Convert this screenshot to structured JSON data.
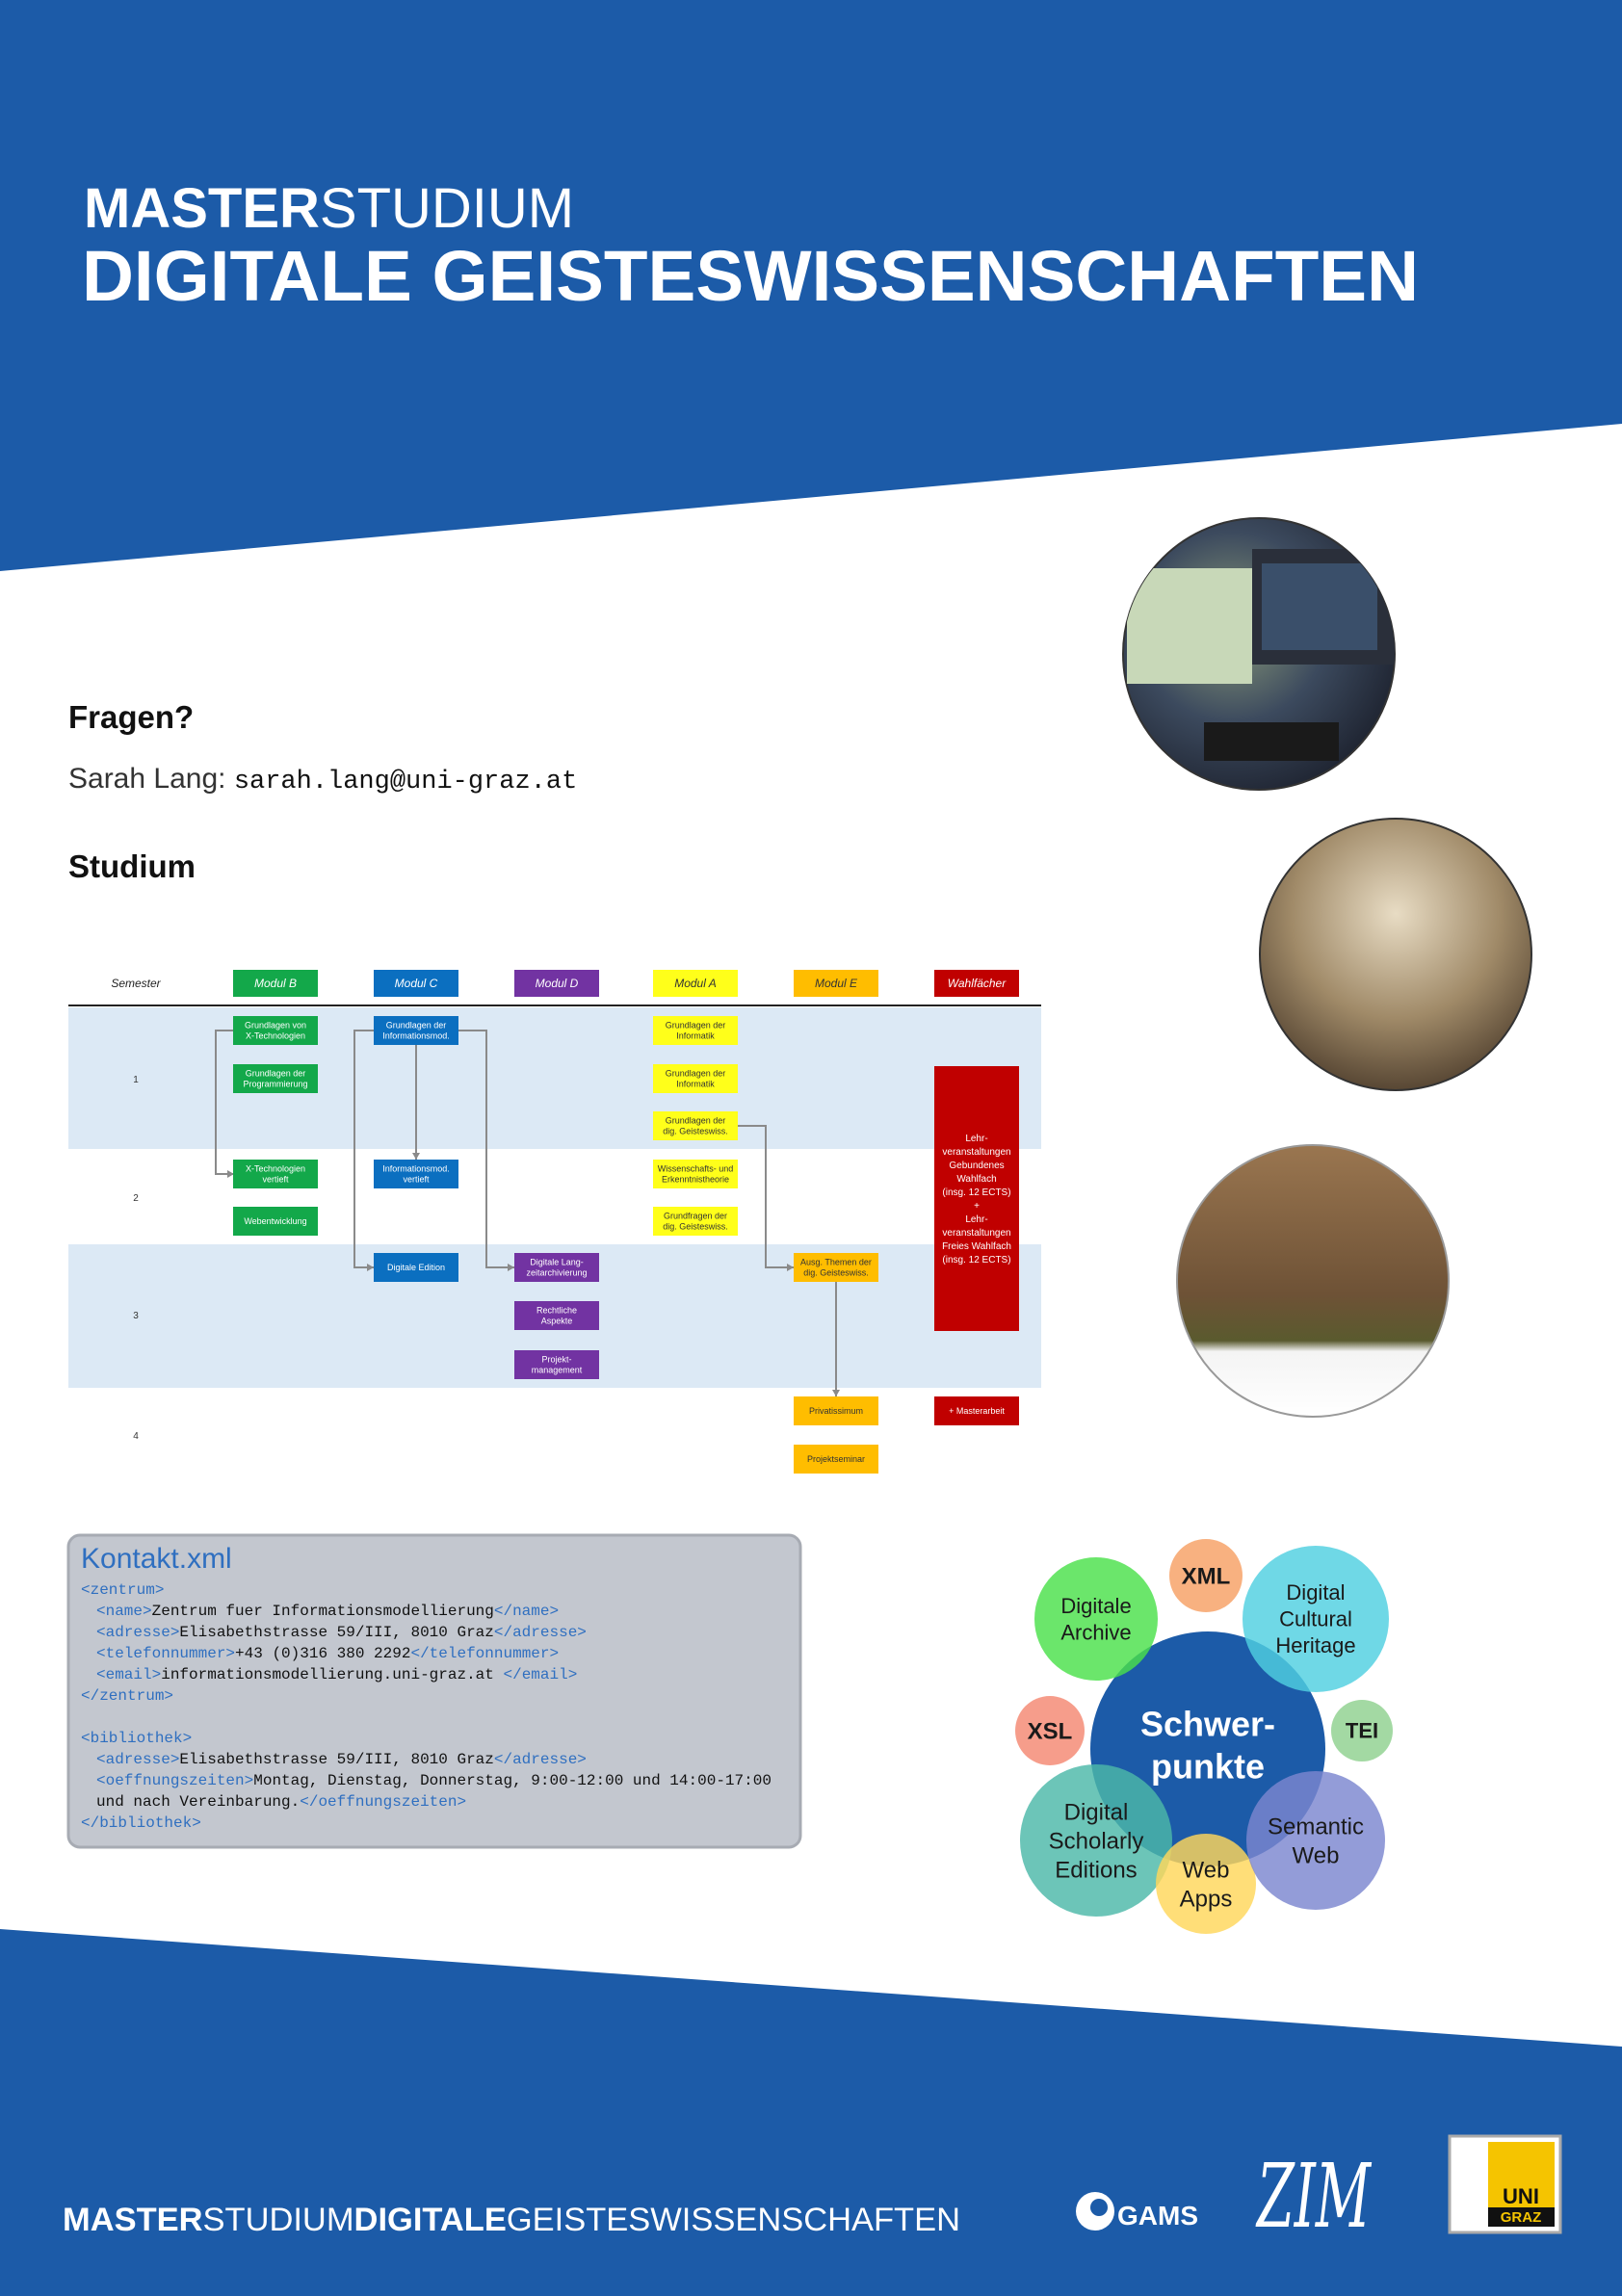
{
  "header": {
    "title_bold": "MASTER",
    "title_light": "STUDIUM",
    "subtitle": "DIGITALE GEISTESWISSENSCHAFTEN"
  },
  "questions": {
    "heading": "Fragen?",
    "contact_name": "Sarah Lang:",
    "contact_email": "sarah.lang@uni-graz.at"
  },
  "study": {
    "heading": "Studium",
    "semester_label": "Semester",
    "semesters": [
      "1",
      "2",
      "3",
      "4"
    ],
    "modules": [
      {
        "name": "Modul B",
        "boxes": [
          {
            "lines": [
              "Grundlagen von",
              "X-Technologien"
            ]
          },
          {
            "lines": [
              "Grundlagen der",
              "Programmierung"
            ]
          },
          {
            "lines": [
              "X-Technologien",
              "vertieft"
            ]
          },
          {
            "lines": [
              "Webentwicklung"
            ]
          }
        ]
      },
      {
        "name": "Modul C",
        "boxes": [
          {
            "lines": [
              "Grundlagen der",
              "Informationsmod."
            ]
          },
          {
            "lines": [
              "Informationsmod.",
              "vertieft"
            ]
          },
          {
            "lines": [
              "Digitale Edition"
            ]
          }
        ]
      },
      {
        "name": "Modul D",
        "boxes": [
          {
            "lines": [
              "Digitale Lang-",
              "zeitarchivierung"
            ]
          },
          {
            "lines": [
              "Rechtliche",
              "Aspekte"
            ]
          },
          {
            "lines": [
              "Projekt-",
              "management"
            ]
          }
        ]
      },
      {
        "name": "Modul A",
        "boxes": [
          {
            "lines": [
              "Grundlagen der",
              "Informatik"
            ]
          },
          {
            "lines": [
              "Grundlagen der",
              "Informatik"
            ]
          },
          {
            "lines": [
              "Grundlagen der",
              "dig. Geisteswiss."
            ]
          },
          {
            "lines": [
              "Wissenschafts- und",
              "Erkenntnistheorie"
            ]
          },
          {
            "lines": [
              "Grundfragen der",
              "dig. Geisteswiss."
            ]
          }
        ]
      },
      {
        "name": "Modul E",
        "boxes": [
          {
            "lines": [
              "Ausg. Themen der",
              "dig. Geisteswiss."
            ]
          },
          {
            "lines": [
              "Privatissimum"
            ]
          },
          {
            "lines": [
              "Projektseminar"
            ]
          }
        ]
      },
      {
        "name": "Wahlfächer",
        "boxes": [
          {
            "lines": [
              "Lehr-",
              "veranstaltungen",
              "Gebundenes",
              "Wahlfach",
              "(insg. 12 ECTS)",
              "+",
              "Lehr-",
              "veranstaltungen",
              "Freies Wahlfach",
              "(insg. 12 ECTS)"
            ]
          },
          {
            "lines": [
              "+ Masterarbeit"
            ]
          }
        ]
      }
    ]
  },
  "contact": {
    "title": "Kontakt.xml",
    "zentrum": [
      "<zentrum>",
      "<name>Zentrum fuer Informationsmodellierung</name>",
      "<adresse>Elisabethstrasse 59/III, 8010 Graz</adresse>",
      "<telefonnummer>+43 (0)316 380  2292</telefonnummer>",
      "<email>informationsmodellierung.uni-graz.at </email>",
      "</zentrum>"
    ],
    "bibliothek": [
      "<bibliothek>",
      "<adresse>Elisabethstrasse 59/III, 8010 Graz</adresse>",
      "<oeffnungszeiten>Montag, Dienstag, Donnerstag, 9:00-12:00 und 14:00-17:00",
      "und nach Vereinbarung.</oeffnungszeiten>",
      "</bibliothek>"
    ]
  },
  "focus": {
    "center": [
      "Schwer-",
      "punkte"
    ],
    "topics": [
      {
        "lines": [
          "Digitale",
          "Archive"
        ]
      },
      {
        "lines": [
          "XML"
        ]
      },
      {
        "lines": [
          "Digital",
          "Cultural",
          "Heritage"
        ]
      },
      {
        "lines": [
          "XSL"
        ]
      },
      {
        "lines": [
          "TEI"
        ]
      },
      {
        "lines": [
          "Digital",
          "Scholarly",
          "Editions"
        ]
      },
      {
        "lines": [
          "Web",
          "Apps"
        ]
      },
      {
        "lines": [
          "Semantic",
          "Web"
        ]
      }
    ]
  },
  "footer": {
    "parts": [
      "MASTER",
      "STUDIUM",
      "DIGITALE",
      "GEISTESWISSENSCHAFTEN"
    ],
    "logos": {
      "gams": "GAMS",
      "zim": "ZIM",
      "uni": "UNI",
      "graz": "GRAZ"
    }
  }
}
